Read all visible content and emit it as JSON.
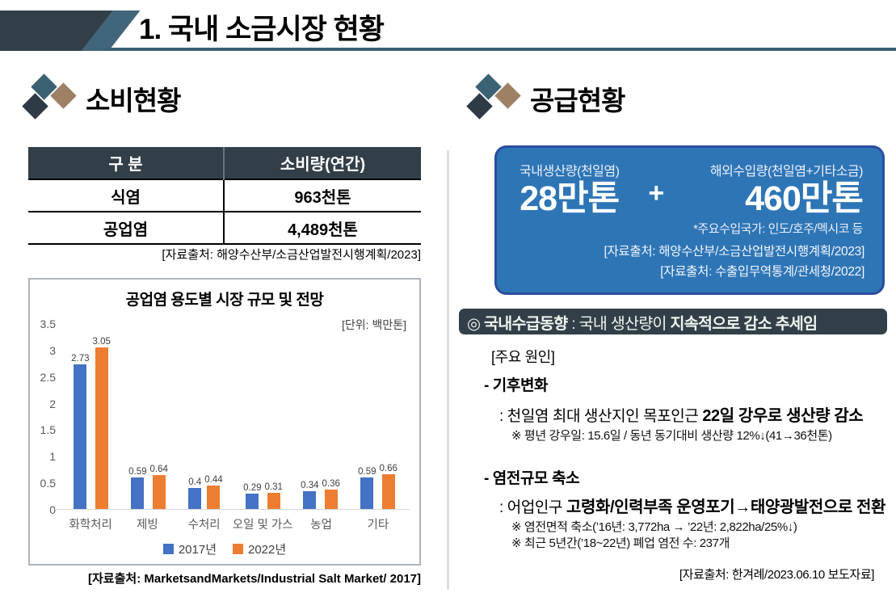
{
  "header": {
    "title": "1. 국내 소금시장 현황"
  },
  "colors": {
    "dark_navy": "#333F48",
    "teal_slash": "#41657A",
    "underline": "#3E6173",
    "supply_box_fill": "#2E75B6",
    "supply_box_border": "#2B4DA0",
    "icon_teal": "#3A6272",
    "icon_brown": "#9E8164",
    "icon_dark": "#2E3B46",
    "bar_blue": "#4472C4",
    "bar_orange": "#ED7D31"
  },
  "consumption": {
    "heading": "소비현황",
    "table": {
      "headers": [
        "구 분",
        "소비량(연간)"
      ],
      "rows": [
        [
          "식염",
          "963천톤"
        ],
        [
          "공업염",
          "4,489천톤"
        ]
      ],
      "source": "[자료출처: 해양수산부/소금산업발전시행계획/2023]"
    },
    "chart_source": "[자료출처: MarketsandMarkets/Industrial Salt Market/ 2017]"
  },
  "chart_data": {
    "type": "bar",
    "title": "공업염 용도별 시장 규모 및 전망",
    "unit_label": "[단위: 백만톤]",
    "categories": [
      "화학처리",
      "제빙",
      "수처리",
      "오일 및 가스",
      "농업",
      "기타"
    ],
    "series": [
      {
        "name": "2017년",
        "color": "#4472C4",
        "values": [
          2.73,
          0.59,
          0.4,
          0.29,
          0.34,
          0.59
        ]
      },
      {
        "name": "2022년",
        "color": "#ED7D31",
        "values": [
          3.05,
          0.64,
          0.44,
          0.31,
          0.36,
          0.66
        ]
      }
    ],
    "value_labels": [
      [
        "2.73",
        "0.59",
        "0.4",
        "0.29",
        "0.34",
        "0.59"
      ],
      [
        "3.05",
        "0.64",
        "0.44",
        "0.31",
        "0.36",
        "0.66"
      ]
    ],
    "ylim": [
      0,
      3.5
    ],
    "yticks": [
      0,
      0.5,
      1,
      1.5,
      2,
      2.5,
      3,
      3.5
    ],
    "grid": false,
    "legend_position": "bottom"
  },
  "supply": {
    "heading": "공급현황",
    "box": {
      "domestic_label": "국내생산량(천일염)",
      "domestic_value": "28만톤",
      "plus": "+",
      "import_label": "해외수입량(천일염+기타소금)",
      "import_value": "460만톤",
      "import_note": "*주요수입국가: 인도/호주/멕시코 등",
      "sources": [
        "[자료출처: 해양수산부/소금산업발전시행계획/2023]",
        "[자료출처: 수출입무역통계/관세청/2022]"
      ]
    },
    "trend_badge": {
      "bold1": "◎ 국내수급동향",
      "mid": " : 국내 생산량이 ",
      "bold2": "지속적으로 감소 추세임"
    },
    "causes_title": "[주요 원인]",
    "cause_climate": {
      "title": "- 기후변화",
      "line_pre": ": 천일염 최대 생산지인 목포인근 ",
      "line_bold": "22일 강우로 생산량 감소",
      "note": "※ 평년 강우일: 15.6일 / 동년 동기대비 생산량 12%↓(41→36천톤)"
    },
    "cause_saltfarm": {
      "title": "- 염전규모 축소",
      "line_pre": ": 어업인구 ",
      "line_bold": "고령화/인력부족 운영포기→태양광발전으로 전환",
      "note1": "※ 염전면적 축소(’16년: 3,772ha → ’22년: 2,822ha/25%↓)",
      "note2": "※ 최근 5년간(’18~22년) 폐업 염전 수: 237개"
    },
    "source": "[자료출처: 한겨례/2023.06.10 보도자료]"
  }
}
